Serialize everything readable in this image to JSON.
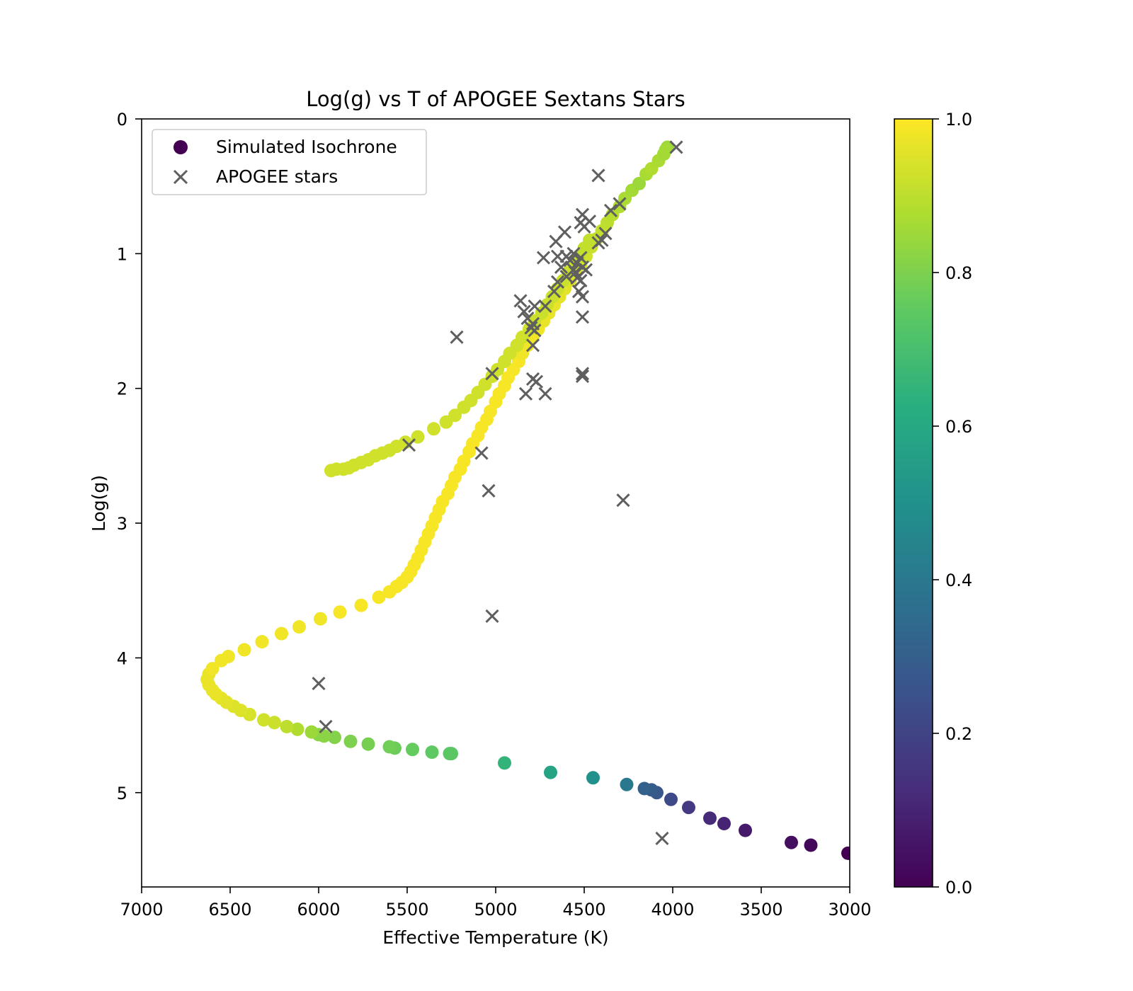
{
  "chart_data": {
    "type": "scatter",
    "title": "Log(g) vs T of APOGEE Sextans Stars",
    "xlabel": "Effective Temperature (K)",
    "ylabel": "Log(g)",
    "xlim": [
      7000,
      3000
    ],
    "ylim": [
      5.7,
      0
    ],
    "x_inverted": true,
    "y_inverted": true,
    "xticks": [
      7000,
      6500,
      6000,
      5500,
      5000,
      4500,
      4000,
      3500,
      3000
    ],
    "xtick_labels": [
      "7000",
      "6500",
      "6000",
      "5500",
      "5000",
      "4500",
      "4000",
      "3500",
      "3000"
    ],
    "yticks": [
      0,
      1,
      2,
      3,
      4,
      5
    ],
    "ytick_labels": [
      "0",
      "1",
      "2",
      "3",
      "4",
      "5"
    ],
    "grid": false,
    "legend_position": "upper-left",
    "legend": [
      {
        "label": "Simulated Isochrone",
        "marker": "circle"
      },
      {
        "label": "APOGEE stars",
        "marker": "x"
      }
    ],
    "colorbar": {
      "colormap": "viridis",
      "range": [
        0.0,
        1.0
      ],
      "ticks": [
        0.0,
        0.2,
        0.4,
        0.6,
        0.8,
        1.0
      ],
      "tick_labels": [
        "0.0",
        "0.2",
        "0.4",
        "0.6",
        "0.8",
        "1.0"
      ]
    },
    "series": [
      {
        "name": "Simulated Isochrone",
        "marker": "circle",
        "points": [
          [
            3010,
            5.45,
            0.0
          ],
          [
            3220,
            5.39,
            0.02
          ],
          [
            3330,
            5.37,
            0.04
          ],
          [
            3590,
            5.28,
            0.07
          ],
          [
            3710,
            5.23,
            0.1
          ],
          [
            3790,
            5.19,
            0.12
          ],
          [
            3910,
            5.11,
            0.17
          ],
          [
            4010,
            5.05,
            0.22
          ],
          [
            4090,
            5.0,
            0.27
          ],
          [
            4120,
            4.98,
            0.29
          ],
          [
            4160,
            4.97,
            0.31
          ],
          [
            4260,
            4.94,
            0.4
          ],
          [
            4450,
            4.89,
            0.5
          ],
          [
            4690,
            4.85,
            0.58
          ],
          [
            4950,
            4.78,
            0.65
          ],
          [
            5250,
            4.71,
            0.74
          ],
          [
            5260,
            4.71,
            0.74
          ],
          [
            5360,
            4.7,
            0.75
          ],
          [
            5470,
            4.68,
            0.76
          ],
          [
            5570,
            4.67,
            0.77
          ],
          [
            5600,
            4.66,
            0.78
          ],
          [
            5720,
            4.64,
            0.79
          ],
          [
            5820,
            4.62,
            0.8
          ],
          [
            5910,
            4.59,
            0.81
          ],
          [
            5970,
            4.58,
            0.82
          ],
          [
            6000,
            4.57,
            0.82
          ],
          [
            6040,
            4.55,
            0.85
          ],
          [
            6120,
            4.53,
            0.88
          ],
          [
            6180,
            4.51,
            0.9
          ],
          [
            6250,
            4.48,
            0.92
          ],
          [
            6310,
            4.46,
            0.93
          ],
          [
            6390,
            4.42,
            0.94
          ],
          [
            6440,
            4.39,
            0.95
          ],
          [
            6480,
            4.36,
            0.95
          ],
          [
            6520,
            4.33,
            0.96
          ],
          [
            6550,
            4.3,
            0.96
          ],
          [
            6580,
            4.27,
            0.97
          ],
          [
            6600,
            4.24,
            0.97
          ],
          [
            6620,
            4.2,
            0.97
          ],
          [
            6630,
            4.16,
            0.97
          ],
          [
            6620,
            4.12,
            0.97
          ],
          [
            6600,
            4.08,
            0.98
          ],
          [
            6550,
            4.02,
            0.98
          ],
          [
            6510,
            3.99,
            0.98
          ],
          [
            6420,
            3.94,
            0.98
          ],
          [
            6320,
            3.88,
            0.98
          ],
          [
            6210,
            3.82,
            0.98
          ],
          [
            6110,
            3.77,
            0.98
          ],
          [
            5990,
            3.71,
            0.98
          ],
          [
            5880,
            3.66,
            0.99
          ],
          [
            5760,
            3.61,
            0.99
          ],
          [
            5660,
            3.55,
            0.99
          ],
          [
            5600,
            3.51,
            0.99
          ],
          [
            5560,
            3.47,
            0.99
          ],
          [
            5530,
            3.44,
            0.99
          ],
          [
            5500,
            3.4,
            0.99
          ],
          [
            5480,
            3.36,
            0.99
          ],
          [
            5460,
            3.31,
            0.99
          ],
          [
            5440,
            3.26,
            0.99
          ],
          [
            5420,
            3.2,
            0.99
          ],
          [
            5400,
            3.14,
            0.99
          ],
          [
            5380,
            3.08,
            0.99
          ],
          [
            5360,
            3.02,
            0.99
          ],
          [
            5340,
            2.96,
            0.99
          ],
          [
            5320,
            2.9,
            0.99
          ],
          [
            5300,
            2.84,
            0.99
          ],
          [
            5270,
            2.78,
            0.99
          ],
          [
            5250,
            2.72,
            0.99
          ],
          [
            5230,
            2.66,
            0.99
          ],
          [
            5200,
            2.6,
            0.99
          ],
          [
            5180,
            2.54,
            0.99
          ],
          [
            5150,
            2.47,
            0.99
          ],
          [
            5130,
            2.41,
            0.99
          ],
          [
            5100,
            2.35,
            0.99
          ],
          [
            5080,
            2.29,
            0.99
          ],
          [
            5050,
            2.23,
            0.99
          ],
          [
            5030,
            2.17,
            0.99
          ],
          [
            5000,
            2.1,
            0.99
          ],
          [
            4980,
            2.04,
            0.99
          ],
          [
            4950,
            1.98,
            0.99
          ],
          [
            4930,
            1.92,
            0.99
          ],
          [
            4900,
            1.86,
            0.99
          ],
          [
            4870,
            1.8,
            0.99
          ],
          [
            4850,
            1.74,
            0.98
          ],
          [
            4820,
            1.68,
            0.98
          ],
          [
            4790,
            1.62,
            0.98
          ],
          [
            4760,
            1.56,
            0.98
          ],
          [
            4730,
            1.5,
            0.97
          ],
          [
            4700,
            1.44,
            0.97
          ],
          [
            4670,
            1.38,
            0.97
          ],
          [
            4640,
            1.32,
            0.96
          ],
          [
            4610,
            1.26,
            0.96
          ],
          [
            4580,
            1.2,
            0.95
          ],
          [
            4550,
            1.14,
            0.95
          ],
          [
            4520,
            1.08,
            0.94
          ],
          [
            4490,
            1.02,
            0.93
          ],
          [
            4460,
            0.95,
            0.92
          ],
          [
            4430,
            0.89,
            0.91
          ],
          [
            4400,
            0.83,
            0.91
          ],
          [
            4370,
            0.77,
            0.9
          ],
          [
            4340,
            0.71,
            0.89
          ],
          [
            4300,
            0.65,
            0.88
          ],
          [
            4270,
            0.59,
            0.87
          ],
          [
            4230,
            0.53,
            0.86
          ],
          [
            4190,
            0.48,
            0.85
          ],
          [
            4150,
            0.41,
            0.87
          ],
          [
            4120,
            0.37,
            0.88
          ],
          [
            4080,
            0.31,
            0.87
          ],
          [
            4050,
            0.26,
            0.86
          ],
          [
            4030,
            0.21,
            0.85
          ],
          [
            4040,
            0.23,
            0.86
          ],
          [
            5930,
            2.61,
            0.93
          ],
          [
            5900,
            2.6,
            0.93
          ],
          [
            5860,
            2.6,
            0.93
          ],
          [
            5830,
            2.59,
            0.93
          ],
          [
            5800,
            2.57,
            0.93
          ],
          [
            5760,
            2.55,
            0.93
          ],
          [
            5720,
            2.53,
            0.93
          ],
          [
            5680,
            2.5,
            0.93
          ],
          [
            5640,
            2.48,
            0.93
          ],
          [
            5600,
            2.46,
            0.93
          ],
          [
            5560,
            2.43,
            0.93
          ],
          [
            5510,
            2.4,
            0.93
          ],
          [
            5440,
            2.36,
            0.93
          ],
          [
            5350,
            2.3,
            0.93
          ],
          [
            5280,
            2.25,
            0.93
          ],
          [
            5230,
            2.2,
            0.93
          ],
          [
            5180,
            2.14,
            0.93
          ],
          [
            5140,
            2.09,
            0.93
          ],
          [
            5100,
            2.03,
            0.93
          ],
          [
            5060,
            1.97,
            0.93
          ],
          [
            5020,
            1.91,
            0.93
          ],
          [
            4990,
            1.86,
            0.93
          ],
          [
            4950,
            1.8,
            0.93
          ],
          [
            4920,
            1.74,
            0.93
          ],
          [
            4880,
            1.68,
            0.93
          ],
          [
            4850,
            1.62,
            0.93
          ],
          [
            4810,
            1.56,
            0.93
          ],
          [
            4780,
            1.5,
            0.92
          ],
          [
            4740,
            1.44,
            0.92
          ],
          [
            4710,
            1.38,
            0.92
          ],
          [
            4680,
            1.32,
            0.92
          ],
          [
            4650,
            1.26,
            0.92
          ],
          [
            4620,
            1.2,
            0.92
          ],
          [
            4590,
            1.14,
            0.92
          ],
          [
            4560,
            1.08,
            0.92
          ],
          [
            4530,
            1.02,
            0.91
          ],
          [
            4500,
            0.96,
            0.91
          ],
          [
            4470,
            0.9,
            0.91
          ]
        ]
      },
      {
        "name": "APOGEE stars",
        "marker": "x",
        "color": "#5f5f5f",
        "points": [
          [
            3980,
            0.21
          ],
          [
            4420,
            0.42
          ],
          [
            4300,
            0.63
          ],
          [
            4350,
            0.68
          ],
          [
            4380,
            0.85
          ],
          [
            4400,
            0.9
          ],
          [
            4420,
            0.92
          ],
          [
            4470,
            0.76
          ],
          [
            4510,
            0.71
          ],
          [
            4520,
            0.77
          ],
          [
            4500,
            0.8
          ],
          [
            4610,
            0.84
          ],
          [
            4660,
            0.91
          ],
          [
            4560,
            1.0
          ],
          [
            4600,
            1.02
          ],
          [
            4580,
            1.05
          ],
          [
            4520,
            1.03
          ],
          [
            4540,
            1.07
          ],
          [
            4730,
            1.03
          ],
          [
            4650,
            1.02
          ],
          [
            4630,
            1.1
          ],
          [
            4560,
            1.12
          ],
          [
            4490,
            1.12
          ],
          [
            4510,
            1.1
          ],
          [
            4540,
            1.18
          ],
          [
            4550,
            1.14
          ],
          [
            4520,
            1.2
          ],
          [
            4600,
            1.17
          ],
          [
            4650,
            1.21
          ],
          [
            4670,
            1.28
          ],
          [
            4530,
            1.28
          ],
          [
            4510,
            1.32
          ],
          [
            4860,
            1.35
          ],
          [
            4840,
            1.43
          ],
          [
            4780,
            1.39
          ],
          [
            4720,
            1.39
          ],
          [
            4820,
            1.48
          ],
          [
            4790,
            1.52
          ],
          [
            4800,
            1.55
          ],
          [
            4780,
            1.57
          ],
          [
            4790,
            1.68
          ],
          [
            4510,
            1.47
          ],
          [
            5220,
            1.62
          ],
          [
            5020,
            1.89
          ],
          [
            4510,
            1.89
          ],
          [
            4510,
            1.91
          ],
          [
            4790,
            1.93
          ],
          [
            4770,
            1.95
          ],
          [
            4830,
            2.04
          ],
          [
            4720,
            2.04
          ],
          [
            5490,
            2.42
          ],
          [
            5080,
            2.48
          ],
          [
            5040,
            2.76
          ],
          [
            4280,
            2.83
          ],
          [
            5020,
            3.69
          ],
          [
            6000,
            4.19
          ],
          [
            5960,
            4.51
          ],
          [
            4060,
            5.34
          ]
        ]
      }
    ]
  }
}
